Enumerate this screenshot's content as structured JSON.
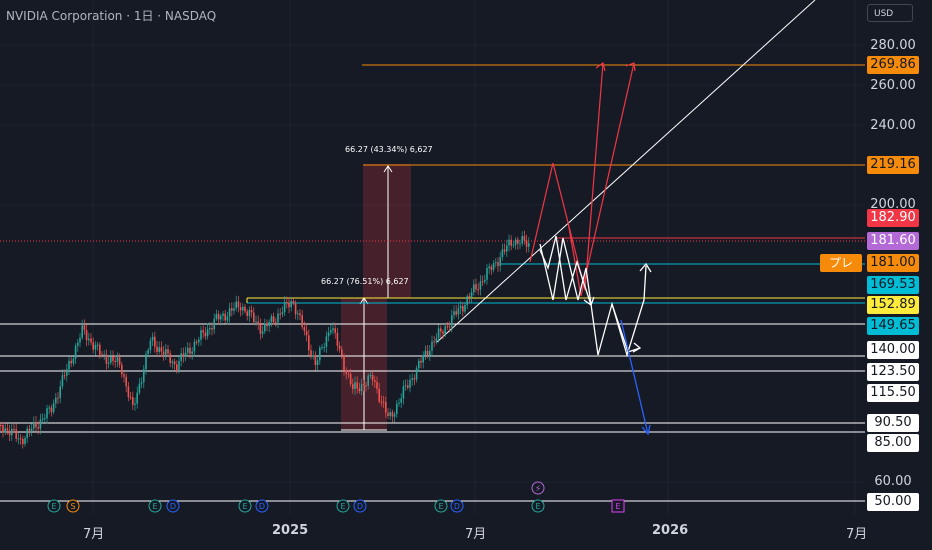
{
  "header": {
    "title": "NVIDIA Corporation · 1日 · NASDAQ",
    "currency": "USD"
  },
  "chart_data": {
    "type": "candlestick",
    "y_ticks": [
      "280.00",
      "260.00",
      "240.00",
      "200.00",
      "60.00"
    ],
    "x_ticks": [
      {
        "label": "7月",
        "x": "2024-07"
      },
      {
        "label": "2025",
        "x": "2025-01"
      },
      {
        "label": "7月",
        "x": "2025-07"
      },
      {
        "label": "2026",
        "x": "2026-01"
      },
      {
        "label": "7月",
        "x": "2026-07"
      }
    ],
    "price_labels": [
      {
        "value": "269.86",
        "color": "#f68a0a",
        "text_color": "#131722"
      },
      {
        "value": "219.16",
        "color": "#f68a0a",
        "text_color": "#131722"
      },
      {
        "value": "182.90",
        "color": "#f23645",
        "text_color": "#ffffff"
      },
      {
        "value": "181.60",
        "color": "#b36ad6",
        "text_color": "#ffffff"
      },
      {
        "value": "181.00",
        "color": "#f68a0a",
        "text_color": "#131722"
      },
      {
        "value": "169.53",
        "color": "#00bcd4",
        "text_color": "#131722"
      },
      {
        "value": "152.89",
        "color": "#ffeb3b",
        "text_color": "#131722"
      },
      {
        "value": "149.65",
        "color": "#00bcd4",
        "text_color": "#131722"
      },
      {
        "value": "140.00",
        "color": "#ffffff",
        "text_color": "#131722"
      },
      {
        "value": "123.50",
        "color": "#ffffff",
        "text_color": "#131722"
      },
      {
        "value": "115.50",
        "color": "#ffffff",
        "text_color": "#131722"
      },
      {
        "value": "90.50",
        "color": "#ffffff",
        "text_color": "#131722"
      },
      {
        "value": "85.00",
        "color": "#ffffff",
        "text_color": "#131722"
      },
      {
        "value": "50.00",
        "color": "#ffffff",
        "text_color": "#131722"
      }
    ],
    "premarket_badge": "プレ",
    "measurements": [
      {
        "text": "66.27 (43.34%) 6,627"
      },
      {
        "text": "66.27 (76.51%) 6,627"
      }
    ],
    "event_markers": [
      "E",
      "S",
      "E",
      "D",
      "E",
      "D",
      "E",
      "D",
      "E",
      "D",
      "E",
      "E"
    ],
    "colors": {
      "up": "#26a69a",
      "down": "#ef5350",
      "background": "#161a25"
    }
  }
}
